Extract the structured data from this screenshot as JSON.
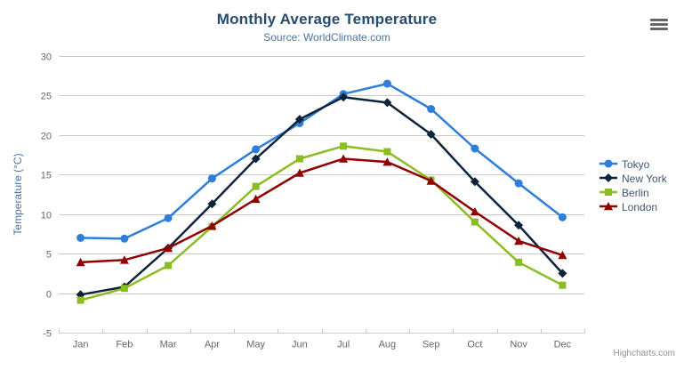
{
  "header": {
    "title": "Monthly Average Temperature",
    "subtitle": "Source: WorldClimate.com"
  },
  "context_menu": {
    "icon": "hamburger-menu-icon"
  },
  "credits": {
    "label": "Highcharts.com"
  },
  "colors": {
    "background": "#ffffff",
    "title_text": "#274b6d",
    "subtitle_text": "#4d759e",
    "axis_title_text": "#4d759e",
    "tick_label_text": "#666666",
    "grid_line": "#c8c8c8",
    "axis_line": "#c0d0e0",
    "legend_text": "#3e576f",
    "credits_text": "#909090",
    "menu_icon": "#666666"
  },
  "chart_data": {
    "type": "line",
    "title": "Monthly Average Temperature",
    "subtitle": "Source: WorldClimate.com",
    "categories": [
      "Jan",
      "Feb",
      "Mar",
      "Apr",
      "May",
      "Jun",
      "Jul",
      "Aug",
      "Sep",
      "Oct",
      "Nov",
      "Dec"
    ],
    "xlabel": "",
    "ylabel": "Temperature (°C)",
    "ylim": [
      -5,
      30
    ],
    "ytick_interval": 5,
    "grid": true,
    "legend_position": "right",
    "series": [
      {
        "name": "Tokyo",
        "color": "#2f7ed8",
        "marker": "circle",
        "values": [
          7.0,
          6.9,
          9.5,
          14.5,
          18.2,
          21.5,
          25.2,
          26.5,
          23.3,
          18.3,
          13.9,
          9.6
        ]
      },
      {
        "name": "New York",
        "color": "#0d233a",
        "marker": "diamond",
        "values": [
          -0.2,
          0.8,
          5.7,
          11.3,
          17.0,
          22.0,
          24.8,
          24.1,
          20.1,
          14.1,
          8.6,
          2.5
        ]
      },
      {
        "name": "Berlin",
        "color": "#8bbc21",
        "marker": "square",
        "values": [
          -0.9,
          0.6,
          3.5,
          8.4,
          13.5,
          17.0,
          18.6,
          17.9,
          14.3,
          9.0,
          3.9,
          1.0
        ]
      },
      {
        "name": "London",
        "color": "#910000",
        "marker": "triangle",
        "values": [
          3.9,
          4.2,
          5.7,
          8.5,
          11.9,
          15.2,
          17.0,
          16.6,
          14.2,
          10.3,
          6.6,
          4.8
        ]
      }
    ]
  }
}
